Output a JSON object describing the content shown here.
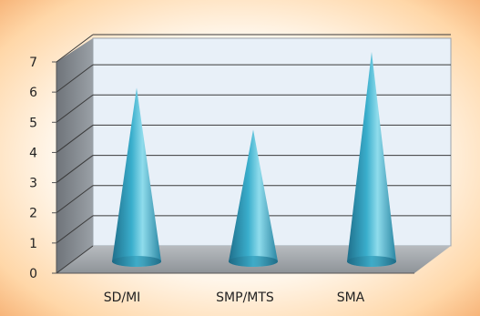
{
  "chart_data": {
    "type": "bar",
    "style": "3d-cone",
    "categories": [
      "SD/MI",
      "SMP/MTS",
      "SMA"
    ],
    "values": [
      5.8,
      4.4,
      7.0
    ],
    "ylim": [
      0,
      7
    ],
    "yticks": [
      "0",
      "1",
      "2",
      "3",
      "4",
      "5",
      "6",
      "7"
    ],
    "grid": true,
    "title": "",
    "xlabel": "",
    "ylabel": "",
    "colors": {
      "cone_dark": "#1f6f8b",
      "cone_mid": "#3aaecc",
      "cone_light": "#8fdcec",
      "back_wall": "#e9f1f8",
      "side_wall": "#8a8f96",
      "floor": "#9ea3a8",
      "grid": "#3a3a3a"
    }
  }
}
